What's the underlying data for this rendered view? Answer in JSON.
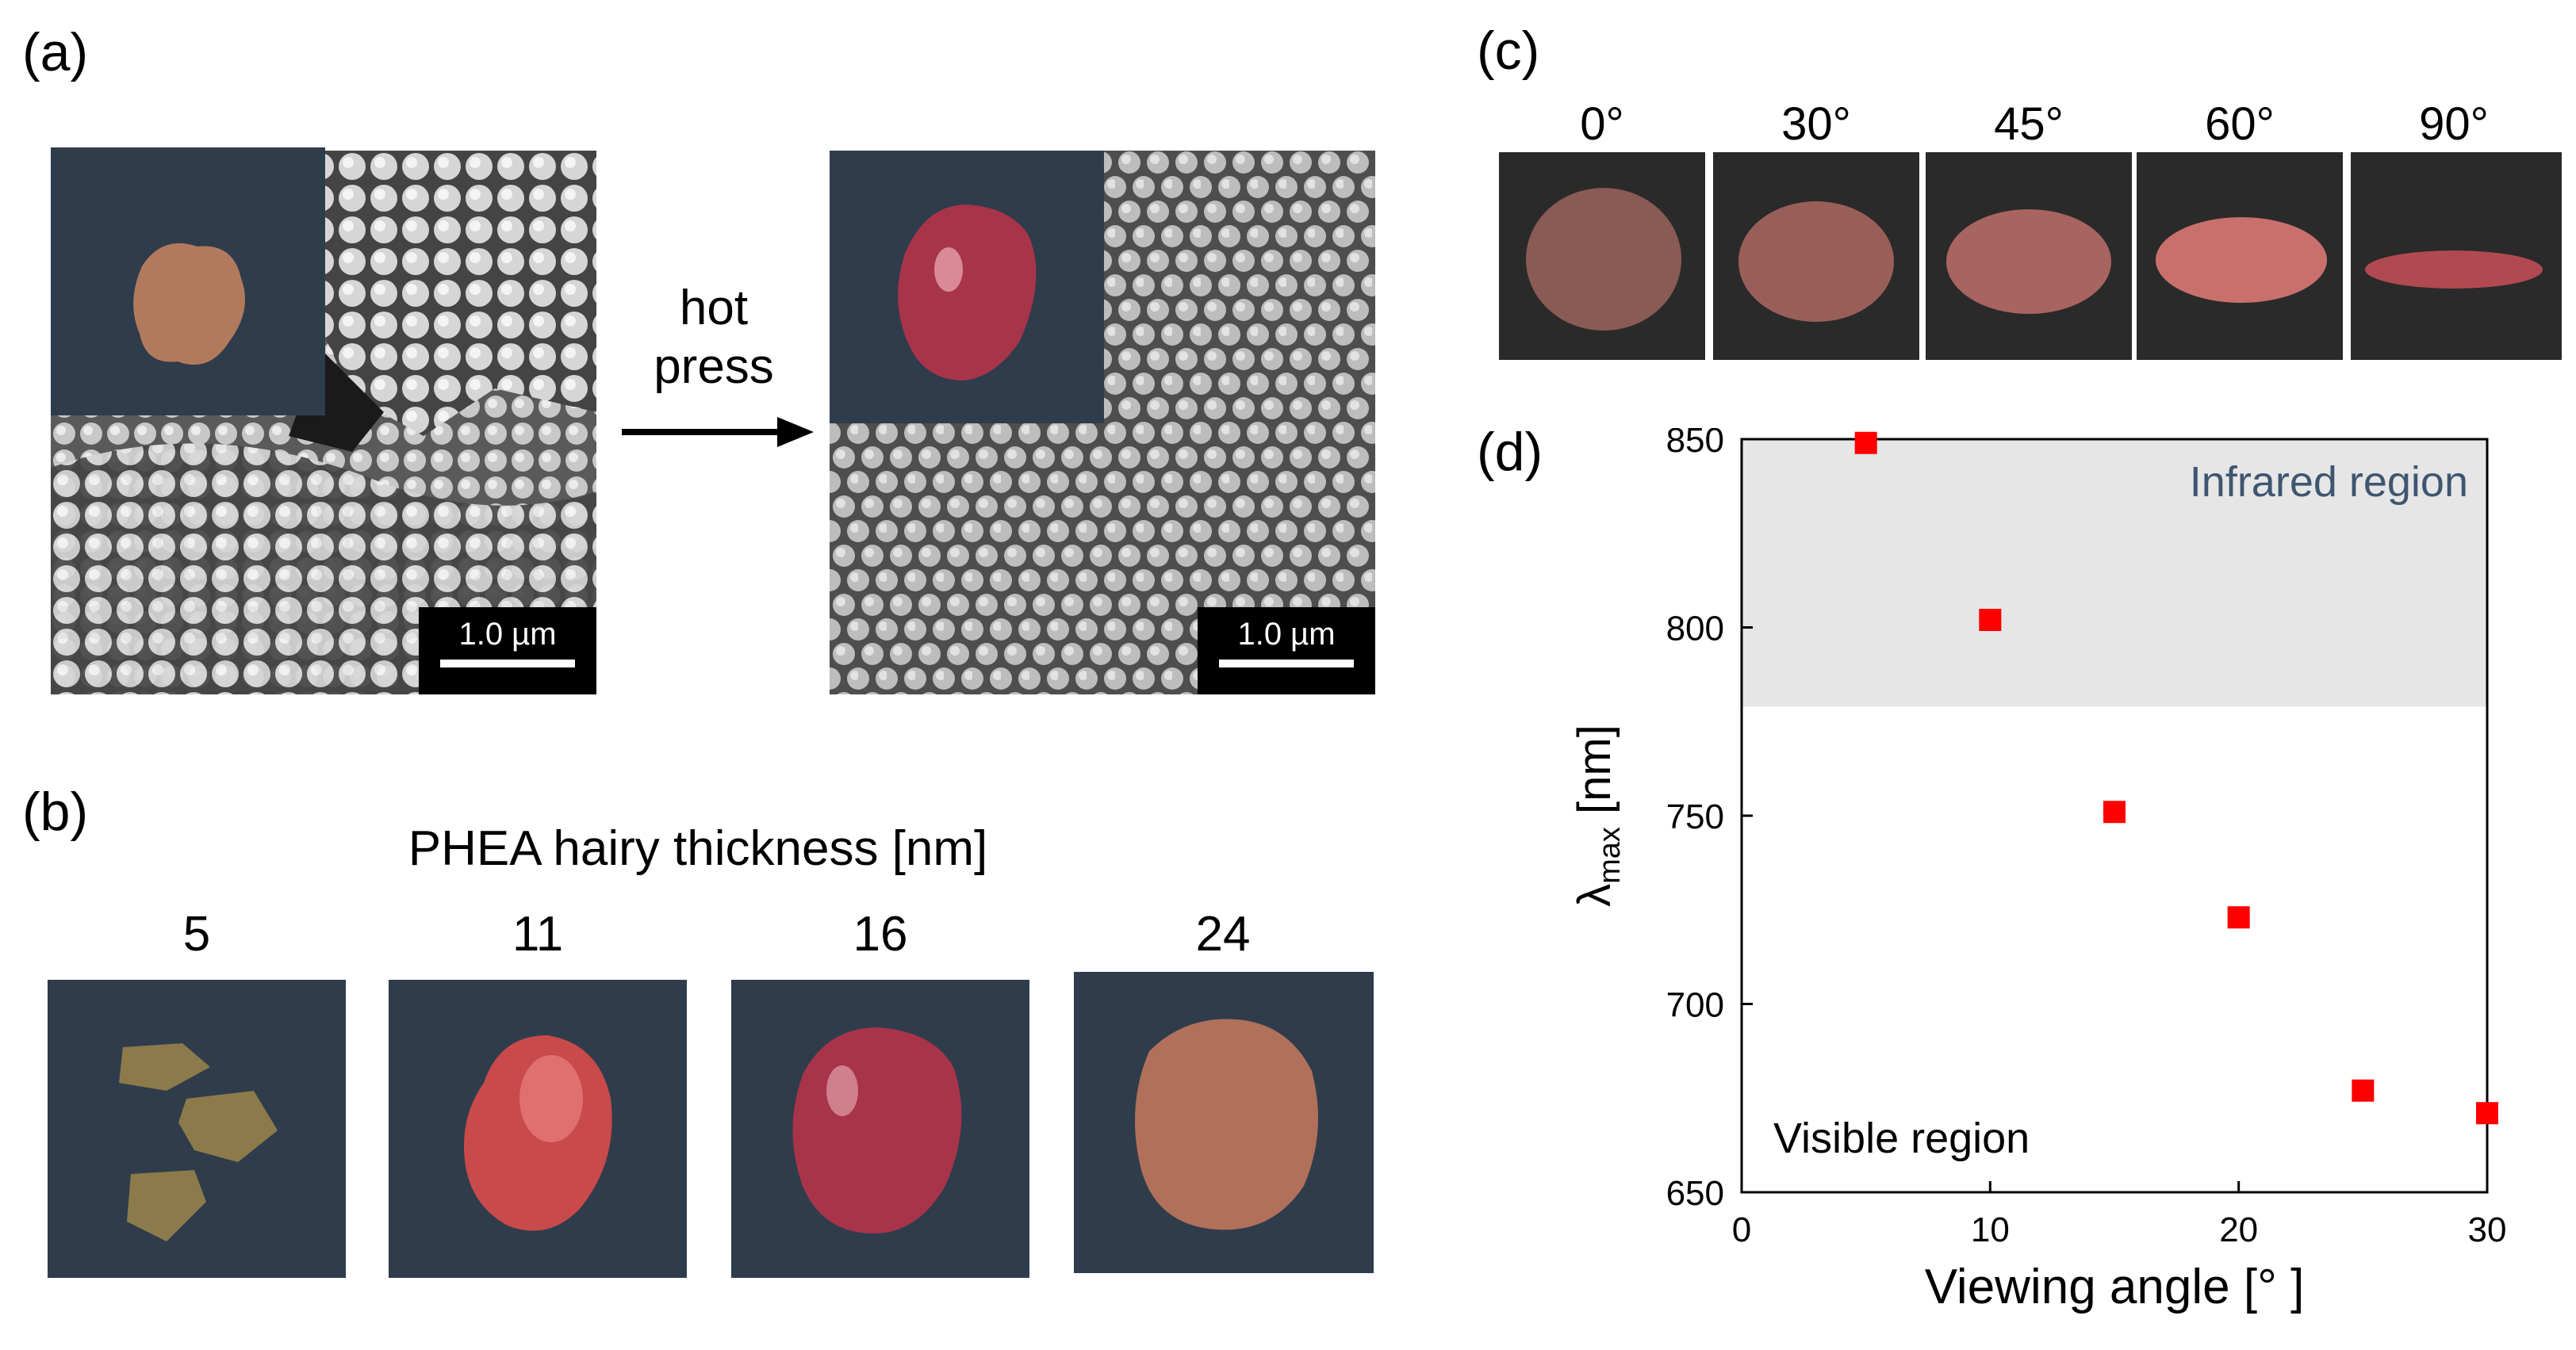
{
  "panels": {
    "a": {
      "label": "(a)",
      "scale_bar_left": "1.0 µm",
      "scale_bar_right": "1.0 µm",
      "arrow_text_line1": "hot",
      "arrow_text_line2": "press"
    },
    "b": {
      "label": "(b)",
      "title": "PHEA hairy thickness [nm]",
      "samples": [
        "5",
        "11",
        "16",
        "24"
      ]
    },
    "c": {
      "label": "(c)",
      "angles": [
        "0°",
        "30°",
        "45°",
        "60°",
        "90°"
      ]
    },
    "d": {
      "label": "(d)",
      "infrared_label": "Infrared region",
      "visible_label": "Visible region"
    }
  },
  "colors": {
    "photo_bg": "#2f3c4c",
    "marker": "#ff0000",
    "infrared_band": "#e6e6e6",
    "infrared_text": "#3f5670"
  },
  "chart_data": {
    "type": "scatter",
    "xlabel": "Viewing angle [° ]",
    "ylabel_main": "λ",
    "ylabel_sub": "max",
    "ylabel_unit": " [nm]",
    "xlim": [
      0,
      30
    ],
    "ylim": [
      650,
      850
    ],
    "xticks": [
      "0",
      "10",
      "20",
      "30"
    ],
    "yticks": [
      "650",
      "700",
      "750",
      "800",
      "850"
    ],
    "infrared_band_min": 779,
    "points": [
      {
        "x": 5,
        "y": 849
      },
      {
        "x": 10,
        "y": 802
      },
      {
        "x": 15,
        "y": 751
      },
      {
        "x": 20,
        "y": 723
      },
      {
        "x": 25,
        "y": 677
      },
      {
        "x": 30,
        "y": 671
      }
    ]
  }
}
